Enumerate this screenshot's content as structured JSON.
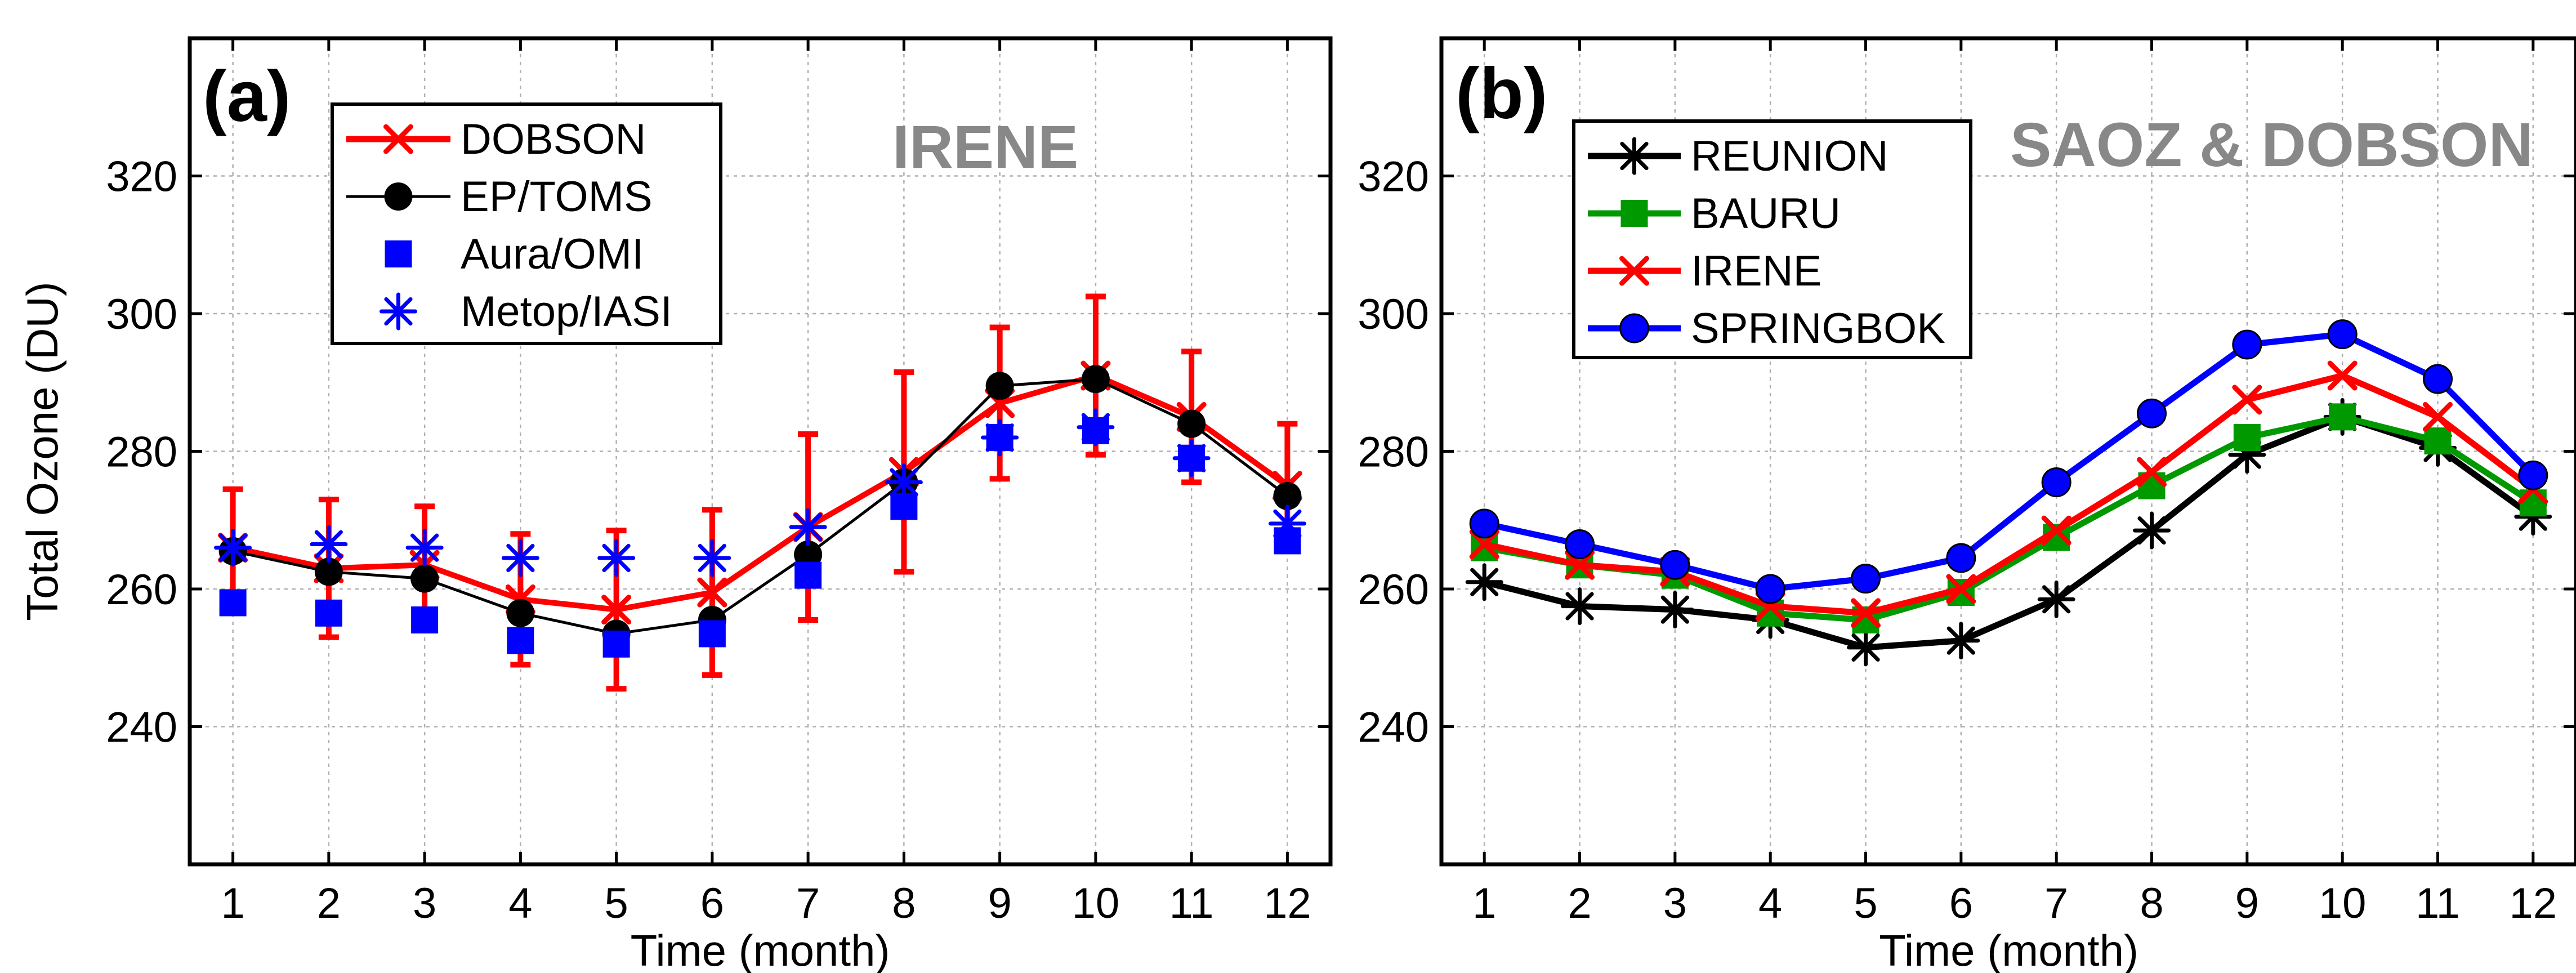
{
  "chart_data": [
    {
      "type": "line",
      "panel_label": "(a)",
      "title": "IRENE",
      "xlabel": "Time (month)",
      "ylabel": "Total Ozone (DU)",
      "xlim": [
        0.55,
        12.45
      ],
      "ylim": [
        220,
        340
      ],
      "x_ticks": [
        1,
        2,
        3,
        4,
        5,
        6,
        7,
        8,
        9,
        10,
        11,
        12
      ],
      "y_ticks": [
        240,
        260,
        280,
        300,
        320
      ],
      "grid": true,
      "legend_position": "top-left",
      "series": [
        {
          "name": "DOBSON",
          "color": "#ff0000",
          "marker": "x",
          "x": [
            1,
            2,
            3,
            4,
            5,
            6,
            7,
            8,
            9,
            10,
            11,
            12
          ],
          "values": [
            266,
            263,
            263.5,
            258.5,
            257,
            259.5,
            269,
            277,
            287,
            291,
            285,
            275
          ],
          "error": [
            8.5,
            10,
            8.5,
            9.5,
            11.5,
            12,
            13.5,
            14.5,
            11,
            11.5,
            9.5,
            9
          ]
        },
        {
          "name": "EP/TOMS",
          "color": "#000000",
          "marker": "circle",
          "x": [
            1,
            2,
            3,
            4,
            5,
            6,
            7,
            8,
            9,
            10,
            11,
            12
          ],
          "values": [
            265.5,
            262.5,
            261.5,
            256.5,
            253.5,
            255.5,
            265,
            275.5,
            289.5,
            290.5,
            284,
            273.5
          ]
        },
        {
          "name": "Aura/OMI",
          "color": "#0000ff",
          "marker": "square",
          "x": [
            1,
            2,
            3,
            4,
            5,
            6,
            7,
            8,
            9,
            10,
            11,
            12
          ],
          "values": [
            258,
            256.5,
            255.5,
            252.5,
            252,
            253.5,
            262,
            272,
            282,
            283,
            279,
            267
          ]
        },
        {
          "name": "Metop/IASI",
          "color": "#0000ff",
          "marker": "asterisk",
          "x": [
            1,
            2,
            3,
            4,
            5,
            6,
            7,
            8,
            9,
            10,
            11,
            12
          ],
          "values": [
            266,
            266.5,
            266,
            264.5,
            264.5,
            264.5,
            269,
            275.5,
            282,
            283.5,
            279,
            269.5
          ]
        }
      ]
    },
    {
      "type": "line",
      "panel_label": "(b)",
      "title": "SAOZ & DOBSON",
      "xlabel": "Time (month)",
      "ylabel": "",
      "xlim": [
        0.55,
        12.45
      ],
      "ylim": [
        220,
        340
      ],
      "x_ticks": [
        1,
        2,
        3,
        4,
        5,
        6,
        7,
        8,
        9,
        10,
        11,
        12
      ],
      "y_ticks": [
        240,
        260,
        280,
        300,
        320
      ],
      "grid": true,
      "legend_position": "top-left",
      "series": [
        {
          "name": "REUNION",
          "color": "#000000",
          "marker": "asterisk",
          "x": [
            1,
            2,
            3,
            4,
            5,
            6,
            7,
            8,
            9,
            10,
            11,
            12
          ],
          "values": [
            261,
            257.5,
            257,
            255.5,
            251.5,
            252.5,
            258.5,
            268.5,
            279.5,
            285,
            280.5,
            270.5
          ]
        },
        {
          "name": "BAURU",
          "color": "#009900",
          "marker": "square",
          "x": [
            1,
            2,
            3,
            4,
            5,
            6,
            7,
            8,
            9,
            10,
            11,
            12
          ],
          "values": [
            266,
            263.5,
            262,
            256.5,
            255.5,
            259.5,
            267.5,
            275,
            282,
            285,
            281.5,
            272.5
          ]
        },
        {
          "name": "IRENE",
          "color": "#ff0000",
          "marker": "x",
          "x": [
            1,
            2,
            3,
            4,
            5,
            6,
            7,
            8,
            9,
            10,
            11,
            12
          ],
          "values": [
            266.5,
            263.5,
            262.5,
            257.5,
            256.5,
            260,
            268.5,
            277,
            287.5,
            291,
            285,
            274.5
          ]
        },
        {
          "name": "SPRINGBOK",
          "color": "#0000ff",
          "marker": "circle",
          "x": [
            1,
            2,
            3,
            4,
            5,
            6,
            7,
            8,
            9,
            10,
            11,
            12
          ],
          "values": [
            269.5,
            266.5,
            263.5,
            260,
            261.5,
            264.5,
            275.5,
            285.5,
            295.5,
            297,
            290.5,
            276.5
          ]
        }
      ]
    }
  ]
}
